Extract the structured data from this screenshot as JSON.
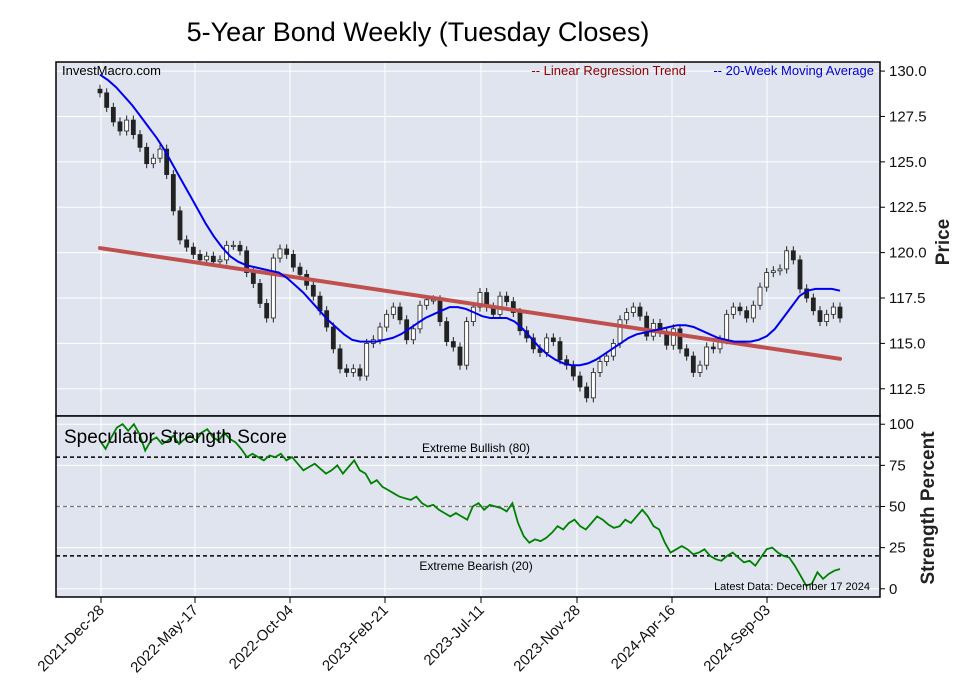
{
  "chart_data": {
    "type": "candlestick",
    "title": "5-Year Bond Weekly (Tuesday Closes)",
    "source": "InvestMacro.com",
    "legend": {
      "regression": "-- Linear Regression Trend",
      "moving_average": "-- 20-Week Moving Average",
      "placement": "top-right"
    },
    "colors": {
      "background": "#dfe4ef",
      "regression": "#c0504d",
      "moving_average": "#0000ee",
      "strength": "#008000",
      "legend_regression_text": "#8b0000",
      "legend_ma_text": "#0000cc"
    },
    "x_ticks": [
      "2021-Dec-28",
      "2022-May-17",
      "2022-Oct-04",
      "2023-Feb-21",
      "2023-Jul-11",
      "2023-Nov-28",
      "2024-Apr-16",
      "2024-Sep-03"
    ],
    "price_panel": {
      "ylabel": "Price",
      "yticks": [
        "130.0",
        "127.5",
        "125.0",
        "122.5",
        "120.0",
        "117.5",
        "115.0",
        "112.5"
      ],
      "ylim": [
        111.0,
        130.5
      ],
      "grid": true,
      "series": [
        {
          "name": "Linear Regression Trend",
          "start": 120.25,
          "end": 114.15
        },
        {
          "name": "20-Week Moving Average",
          "values": [
            129.8,
            129.5,
            129.1,
            128.6,
            128.1,
            127.5,
            126.9,
            126.3,
            125.6,
            124.8,
            124.0,
            123.2,
            122.4,
            121.6,
            120.9,
            120.3,
            119.8,
            119.5,
            119.3,
            119.2,
            119.1,
            119.0,
            118.9,
            118.6,
            118.2,
            117.8,
            117.3,
            116.8,
            116.3,
            115.9,
            115.5,
            115.2,
            115.1,
            115.1,
            115.1,
            115.2,
            115.3,
            115.5,
            115.8,
            116.1,
            116.4,
            116.6,
            116.8,
            117.0,
            117.0,
            116.9,
            116.7,
            116.5,
            116.4,
            116.4,
            116.4,
            116.2,
            115.8,
            115.3,
            114.8,
            114.4,
            114.1,
            113.9,
            113.8,
            113.8,
            113.9,
            114.1,
            114.4,
            114.7,
            115.0,
            115.3,
            115.5,
            115.6,
            115.7,
            115.8,
            115.9,
            116.0,
            116.0,
            115.9,
            115.7,
            115.5,
            115.3,
            115.2,
            115.1,
            115.1,
            115.1,
            115.2,
            115.4,
            115.8,
            116.4,
            117.0,
            117.6,
            117.9,
            118.0,
            118.0,
            118.0,
            117.9
          ]
        },
        {
          "name": "Weekly Close",
          "values": [
            128.8,
            128.0,
            127.2,
            126.7,
            127.3,
            126.5,
            125.8,
            124.9,
            125.2,
            125.7,
            124.3,
            122.3,
            120.7,
            120.3,
            119.9,
            119.6,
            119.8,
            119.5,
            119.6,
            120.4,
            120.4,
            120.1,
            118.9,
            118.3,
            117.2,
            116.4,
            119.7,
            120.2,
            119.9,
            119.2,
            118.8,
            118.2,
            117.6,
            116.8,
            115.9,
            114.7,
            113.6,
            113.4,
            113.6,
            113.2,
            115.0,
            115.2,
            115.9,
            116.6,
            117.0,
            116.3,
            115.2,
            115.8,
            117.1,
            117.4,
            117.4,
            116.2,
            115.1,
            114.8,
            113.8,
            116.2,
            117.0,
            117.8,
            117.0,
            116.6,
            117.6,
            117.3,
            116.7,
            115.7,
            115.3,
            114.7,
            114.5,
            115.3,
            115.1,
            114.1,
            113.8,
            113.2,
            112.6,
            112.0,
            113.4,
            114.0,
            114.3,
            115.0,
            116.3,
            116.7,
            117.0,
            116.5,
            115.4,
            116.1,
            115.6,
            114.9,
            115.8,
            114.7,
            114.3,
            113.4,
            113.8,
            114.8,
            114.7,
            115.2,
            116.6,
            117.0,
            116.8,
            116.4,
            117.1,
            118.1,
            118.9,
            119.0,
            119.1,
            120.1,
            119.6,
            118.0,
            117.5,
            116.8,
            116.2,
            116.6,
            117.0,
            116.4
          ]
        }
      ]
    },
    "strength_panel": {
      "title": "Speculator Strength Score",
      "ylabel": "Strength Percent",
      "yticks": [
        "100",
        "75",
        "50",
        "25",
        "0"
      ],
      "ylim": [
        -5,
        105
      ],
      "reference_lines": [
        {
          "label": "Extreme Bullish (80)",
          "value": 80
        },
        {
          "label": "",
          "value": 50
        },
        {
          "label": "Extreme Bearish (20)",
          "value": 20
        }
      ],
      "note": "Latest Data: December 17 2024",
      "values": [
        90,
        85,
        92,
        98,
        100,
        96,
        100,
        94,
        84,
        90,
        92,
        88,
        90,
        93,
        88,
        91,
        93,
        90,
        95,
        97,
        92,
        90,
        95,
        91,
        89,
        85,
        80,
        82,
        80,
        78,
        81,
        80,
        82,
        78,
        80,
        76,
        72,
        74,
        76,
        73,
        70,
        72,
        75,
        70,
        74,
        78,
        72,
        70,
        64,
        66,
        62,
        60,
        58,
        56,
        55,
        54,
        56,
        52,
        50,
        51,
        48,
        46,
        44,
        46,
        44,
        42,
        50,
        52,
        48,
        51,
        50,
        49,
        47,
        52,
        40,
        32,
        28,
        30,
        29,
        31,
        34,
        38,
        36,
        40,
        42,
        38,
        36,
        40,
        44,
        42,
        39,
        37,
        38,
        42,
        40,
        44,
        48,
        44,
        38,
        36,
        28,
        22,
        24,
        26,
        24,
        21,
        22,
        24,
        20,
        18,
        17,
        20,
        22,
        19,
        16,
        17,
        14,
        19,
        24,
        25,
        22,
        20,
        19,
        14,
        8,
        2,
        3,
        10,
        6,
        9,
        11,
        12
      ]
    }
  }
}
